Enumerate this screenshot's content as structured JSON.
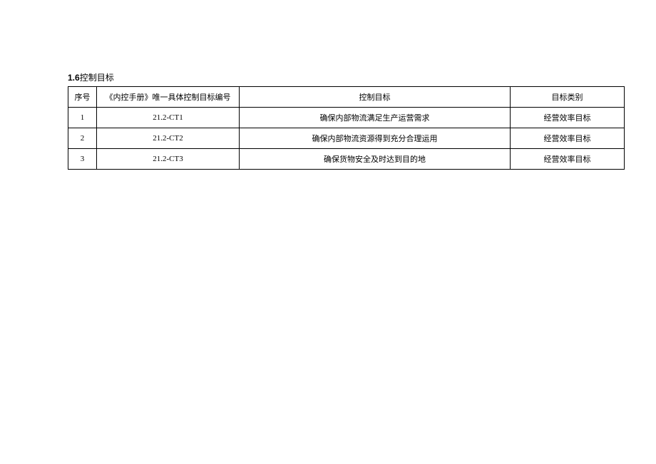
{
  "section": {
    "number": "1.6",
    "title": "控制目标"
  },
  "table": {
    "columns": [
      "序号",
      "《内控手册》唯一具体控制目标编号",
      "控制目标",
      "目标类别"
    ],
    "rows": [
      {
        "seq": "1",
        "code": "21.2-CT1",
        "objective": "确保内部物流满足生产运营需求",
        "category": "经营效率目标"
      },
      {
        "seq": "2",
        "code": "21.2-CT2",
        "objective": "确保内部物流资源得到充分合理运用",
        "category": "经营效率目标"
      },
      {
        "seq": "3",
        "code": "21.2-CT3",
        "objective": "确保货物安全及时达到目的地",
        "category": "经营效率目标"
      }
    ]
  }
}
